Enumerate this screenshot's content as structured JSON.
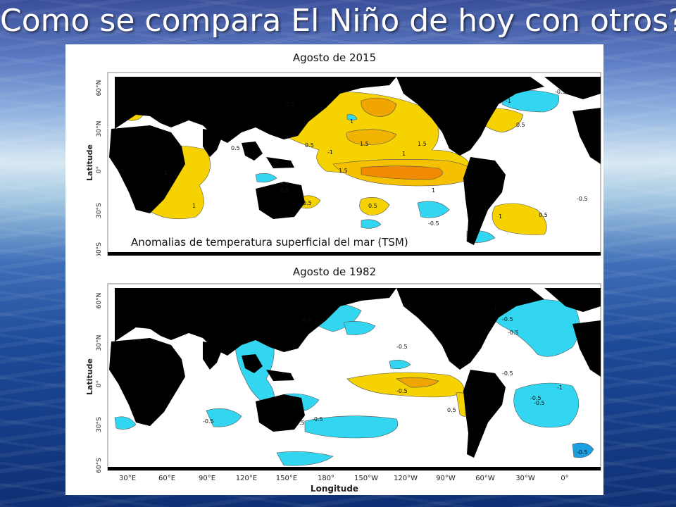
{
  "title": "Como se compara El Niño de hoy con otros?",
  "maps": [
    {
      "title": "Agosto de 2015",
      "caption": "Anomalias de temperatura superficial del mar (TSM)",
      "contour_labels": [
        "0.5",
        "0.5",
        "1",
        "1.5",
        "1.5",
        "1",
        "0.5",
        "-1",
        "1",
        "0.5",
        "1",
        "1",
        "1.5",
        "0.5",
        "0.5",
        "-0.5",
        "1",
        "0.5",
        "-1",
        "-0.5",
        "0.5",
        "-0.5"
      ]
    },
    {
      "title": "Agosto de 1982",
      "contour_labels": [
        "-0.5",
        "-0.5",
        "-0.5",
        "-0.5",
        "-0.5",
        "-0.5",
        "-1",
        "-0.5",
        "0.5",
        "-0.5",
        "-0.5",
        "-1",
        "-0.5",
        "-0.5",
        "-0.5"
      ]
    }
  ],
  "axes": {
    "latitude_label": "Latitude",
    "longitude_label": "Longitude",
    "lat_ticks": [
      "60°N",
      "30°N",
      "0°",
      "30°S",
      "60°S"
    ],
    "lon_ticks": [
      "30°E",
      "60°E",
      "90°E",
      "120°E",
      "150°E",
      "180°",
      "150°W",
      "120°W",
      "90°W",
      "60°W",
      "30°W",
      "0°"
    ]
  },
  "colors": {
    "land": "#000000",
    "warm_anomaly": "#f5d200",
    "strong_warm_anomaly": "#f08a00",
    "cold_anomaly": "#33d6f0",
    "strong_cold_anomaly": "#1aa0e0",
    "ocean": "#ffffff"
  }
}
